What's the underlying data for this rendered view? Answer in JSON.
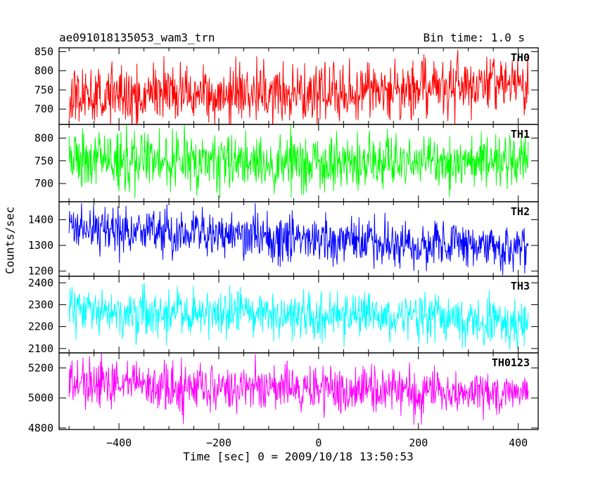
{
  "header": {
    "title": "ae091018135053_wam3_trn",
    "bin_time": "Bin time: 1.0 s"
  },
  "chart_data": {
    "type": "line",
    "title": "ae091018135053_wam3_trn",
    "subtitle": "Bin time: 1.0 s",
    "xlabel": "Time [sec] 0 = 2009/10/18 13:50:53",
    "ylabel": "Counts/sec",
    "xlim": [
      -520,
      440
    ],
    "x_ticks": [
      -400,
      -200,
      0,
      200,
      400
    ],
    "x_tick_labels": [
      "−400",
      "−200",
      "0",
      "200",
      "400"
    ],
    "x_range": [
      -500,
      420
    ],
    "bin_seconds": 1.0,
    "grid": false,
    "panels": [
      {
        "name": "TH0",
        "color": "#ff0000",
        "ylim": [
          660,
          860
        ],
        "yticks": [
          700,
          750,
          800,
          850
        ],
        "trend": [
          [
            -500,
            730
          ],
          [
            -200,
            740
          ],
          [
            0,
            742
          ],
          [
            200,
            755
          ],
          [
            420,
            770
          ]
        ],
        "noise": 38
      },
      {
        "name": "TH1",
        "color": "#00ff00",
        "ylim": [
          660,
          830
        ],
        "yticks": [
          700,
          750,
          800
        ],
        "trend": [
          [
            -500,
            750
          ],
          [
            -200,
            748
          ],
          [
            0,
            745
          ],
          [
            200,
            748
          ],
          [
            420,
            750
          ]
        ],
        "noise": 32
      },
      {
        "name": "TH2",
        "color": "#0000ff",
        "ylim": [
          1180,
          1470
        ],
        "yticks": [
          1200,
          1300,
          1400
        ],
        "trend": [
          [
            -500,
            1365
          ],
          [
            -200,
            1340
          ],
          [
            0,
            1320
          ],
          [
            200,
            1305
          ],
          [
            420,
            1290
          ]
        ],
        "noise": 45
      },
      {
        "name": "TH3",
        "color": "#00ffff",
        "ylim": [
          2080,
          2430
        ],
        "yticks": [
          2100,
          2200,
          2300,
          2400
        ],
        "trend": [
          [
            -500,
            2275
          ],
          [
            -200,
            2260
          ],
          [
            0,
            2250
          ],
          [
            200,
            2235
          ],
          [
            420,
            2220
          ]
        ],
        "noise": 55
      },
      {
        "name": "TH0123",
        "color": "#ff00ff",
        "ylim": [
          4790,
          5300
        ],
        "yticks": [
          4800,
          5000,
          5200
        ],
        "trend": [
          [
            -500,
            5110
          ],
          [
            -200,
            5080
          ],
          [
            0,
            5060
          ],
          [
            200,
            5045
          ],
          [
            420,
            5030
          ]
        ],
        "noise": 80
      }
    ]
  }
}
